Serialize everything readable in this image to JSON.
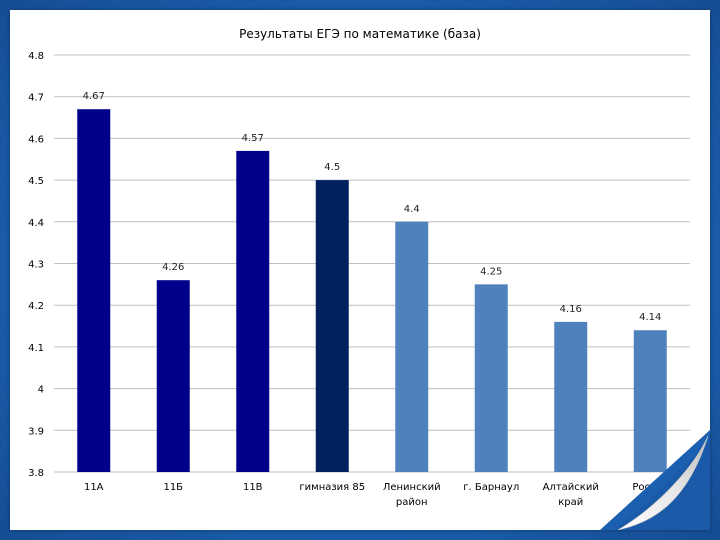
{
  "colors": {
    "background": "#1b5fb0",
    "sheet": "#ffffff",
    "grid": "#bfbfbf",
    "school_bar": "#00008b",
    "highlight_bar": "#002060",
    "region_bar": "#4f81bd",
    "text": "#000000",
    "data_label": "#222222"
  },
  "chart_data": {
    "type": "bar",
    "title": "Результаты ЕГЭ по математике (база)",
    "xlabel": "",
    "ylabel": "",
    "ylim": [
      3.8,
      4.8
    ],
    "yticks": [
      "4.8",
      "4.7",
      "4.6",
      "4.5",
      "4.4",
      "4.3",
      "4.2",
      "4.1",
      "4",
      "3.9",
      "3.8"
    ],
    "grid": true,
    "legend": "none",
    "categories": [
      {
        "label": "11А",
        "label_lines": [
          "11А"
        ]
      },
      {
        "label": "11Б",
        "label_lines": [
          "11Б"
        ]
      },
      {
        "label": "11В",
        "label_lines": [
          "11В"
        ]
      },
      {
        "label": "гимназия 85",
        "label_lines": [
          "гимназия 85"
        ]
      },
      {
        "label": "Ленинский район",
        "label_lines": [
          "Ленинский",
          "район"
        ]
      },
      {
        "label": "г. Барнаул",
        "label_lines": [
          "г. Барнаул"
        ]
      },
      {
        "label": "Алтайский край",
        "label_lines": [
          "Алтайский",
          "край"
        ]
      },
      {
        "label": "Россия",
        "label_lines": [
          "Россия"
        ]
      }
    ],
    "values": [
      4.67,
      4.26,
      4.57,
      4.5,
      4.4,
      4.25,
      4.16,
      4.14
    ],
    "value_labels": [
      "4.67",
      "4.26",
      "4.57",
      "4.5",
      "4.4",
      "4.25",
      "4.16",
      "4.14"
    ],
    "bar_colors": [
      "#00008b",
      "#00008b",
      "#00008b",
      "#002060",
      "#4f81bd",
      "#4f81bd",
      "#4f81bd",
      "#4f81bd"
    ]
  }
}
